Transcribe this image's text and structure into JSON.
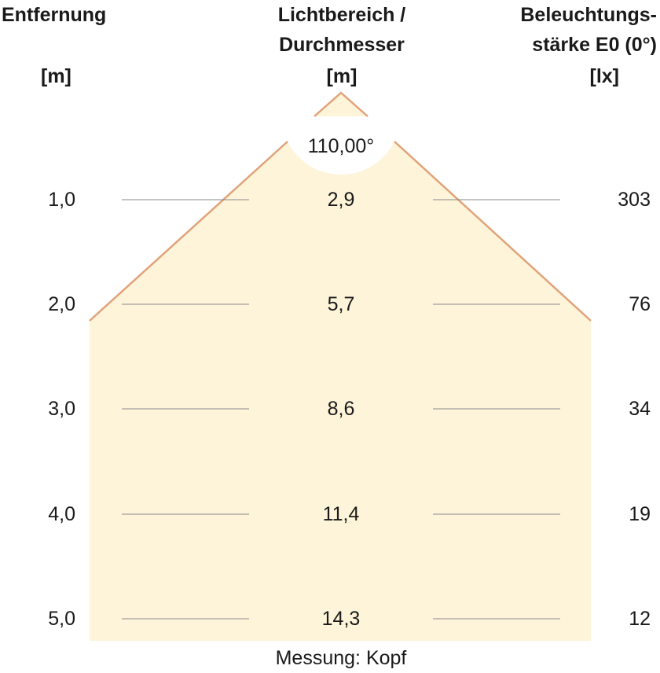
{
  "headers": {
    "distance_title": "Entfernung",
    "distance_unit": "[m]",
    "diameter_title_line1": "Lichtbereich /",
    "diameter_title_line2": "Durchmesser",
    "diameter_unit": "[m]",
    "illuminance_title_line1": "Beleuchtungs-",
    "illuminance_title_line2": "stärke E0 (0°)",
    "illuminance_unit": "[lx]"
  },
  "beam_angle": "110,00°",
  "rows": [
    {
      "distance": "1,0",
      "diameter": "2,9",
      "illuminance": "303"
    },
    {
      "distance": "2,0",
      "diameter": "5,7",
      "illuminance": "76"
    },
    {
      "distance": "3,0",
      "diameter": "8,6",
      "illuminance": "34"
    },
    {
      "distance": "4,0",
      "diameter": "11,4",
      "illuminance": "19"
    },
    {
      "distance": "5,0",
      "diameter": "14,3",
      "illuminance": "12"
    }
  ],
  "caption": "Messung: Kopf",
  "colors": {
    "beam_fill": "#fdf4d9",
    "beam_edge": "#e0a37a",
    "row_line": "#8a8a8a"
  }
}
